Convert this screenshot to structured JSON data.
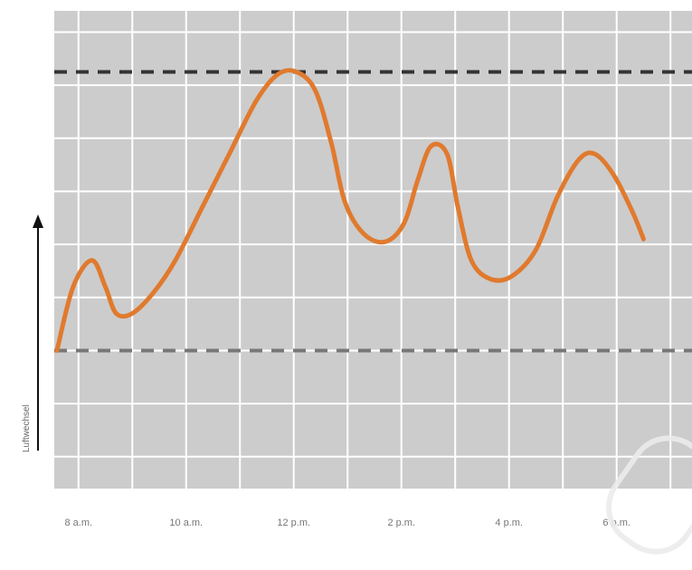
{
  "chart_data": {
    "type": "line",
    "title": "",
    "xlabel": "",
    "ylabel": "Luftwechsel",
    "x_ticks": [
      "8 a.m.",
      "10 a.m.",
      "12 p.m.",
      "2 p.m.",
      "4 p.m.",
      "6 p.m."
    ],
    "x_range_hours": [
      7.55,
      19.4
    ],
    "y_range": [
      0,
      9
    ],
    "grid": true,
    "background_color": "#cccccc",
    "grid_color": "#ffffff",
    "series": [
      {
        "name": "",
        "color": "#e07a2e",
        "points": [
          [
            7.6,
            2.6
          ],
          [
            7.9,
            3.8
          ],
          [
            8.25,
            4.3
          ],
          [
            8.5,
            3.8
          ],
          [
            8.7,
            3.3
          ],
          [
            9.0,
            3.3
          ],
          [
            9.4,
            3.7
          ],
          [
            9.8,
            4.3
          ],
          [
            10.3,
            5.3
          ],
          [
            10.8,
            6.3
          ],
          [
            11.3,
            7.3
          ],
          [
            11.7,
            7.8
          ],
          [
            12.05,
            7.85
          ],
          [
            12.4,
            7.5
          ],
          [
            12.7,
            6.5
          ],
          [
            12.95,
            5.4
          ],
          [
            13.3,
            4.8
          ],
          [
            13.7,
            4.65
          ],
          [
            14.05,
            5.0
          ],
          [
            14.3,
            5.8
          ],
          [
            14.55,
            6.45
          ],
          [
            14.85,
            6.3
          ],
          [
            15.05,
            5.3
          ],
          [
            15.3,
            4.3
          ],
          [
            15.65,
            3.95
          ],
          [
            16.05,
            4.0
          ],
          [
            16.5,
            4.5
          ],
          [
            16.9,
            5.5
          ],
          [
            17.3,
            6.2
          ],
          [
            17.6,
            6.3
          ],
          [
            17.95,
            5.9
          ],
          [
            18.3,
            5.2
          ],
          [
            18.5,
            4.7
          ]
        ]
      }
    ],
    "reference_lines": [
      {
        "y": 7.85,
        "style": "dashed",
        "color": "#333333"
      },
      {
        "y": 2.6,
        "style": "dashed",
        "color": "#777777"
      }
    ]
  }
}
